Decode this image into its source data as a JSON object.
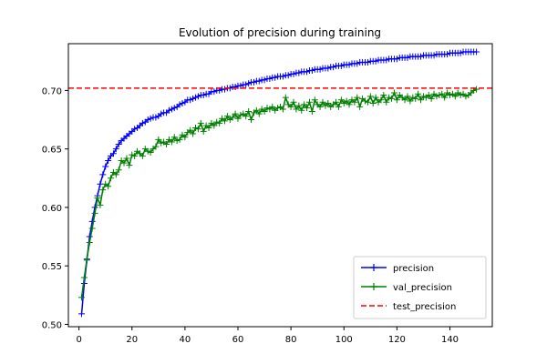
{
  "chart_data": {
    "type": "line",
    "title": "Evolution of precision during training",
    "xlabel": "",
    "ylabel": "",
    "xlim": [
      -4,
      156
    ],
    "ylim": [
      0.498,
      0.74
    ],
    "xticks": [
      0,
      20,
      40,
      60,
      80,
      100,
      120,
      140
    ],
    "yticks": [
      0.5,
      0.55,
      0.6,
      0.65,
      0.7
    ],
    "ytick_labels": [
      "0.50",
      "0.55",
      "0.60",
      "0.65",
      "0.70"
    ],
    "grid": false,
    "legend": "bottom-right",
    "x": [
      1,
      2,
      3,
      4,
      5,
      6,
      7,
      8,
      9,
      10,
      11,
      12,
      13,
      14,
      15,
      16,
      17,
      18,
      19,
      20,
      21,
      22,
      23,
      24,
      25,
      26,
      27,
      28,
      29,
      30,
      31,
      32,
      33,
      34,
      35,
      36,
      37,
      38,
      39,
      40,
      41,
      42,
      43,
      44,
      45,
      46,
      47,
      48,
      49,
      50,
      51,
      52,
      53,
      54,
      55,
      56,
      57,
      58,
      59,
      60,
      61,
      62,
      63,
      64,
      65,
      66,
      67,
      68,
      69,
      70,
      71,
      72,
      73,
      74,
      75,
      76,
      77,
      78,
      79,
      80,
      81,
      82,
      83,
      84,
      85,
      86,
      87,
      88,
      89,
      90,
      91,
      92,
      93,
      94,
      95,
      96,
      97,
      98,
      99,
      100,
      101,
      102,
      103,
      104,
      105,
      106,
      107,
      108,
      109,
      110,
      111,
      112,
      113,
      114,
      115,
      116,
      117,
      118,
      119,
      120,
      121,
      122,
      123,
      124,
      125,
      126,
      127,
      128,
      129,
      130,
      131,
      132,
      133,
      134,
      135,
      136,
      137,
      138,
      139,
      140,
      141,
      142,
      143,
      144,
      145,
      146,
      147,
      148,
      149,
      150
    ],
    "series": [
      {
        "name": "precision",
        "color": "#0000ff",
        "style": "solid",
        "marker": "plus",
        "values": [
          0.509,
          0.535,
          0.555,
          0.575,
          0.588,
          0.6,
          0.61,
          0.62,
          0.628,
          0.635,
          0.64,
          0.644,
          0.646,
          0.65,
          0.654,
          0.657,
          0.659,
          0.661,
          0.663,
          0.665,
          0.667,
          0.668,
          0.67,
          0.672,
          0.673,
          0.675,
          0.676,
          0.677,
          0.677,
          0.678,
          0.68,
          0.681,
          0.681,
          0.683,
          0.684,
          0.685,
          0.686,
          0.688,
          0.689,
          0.69,
          0.692,
          0.692,
          0.693,
          0.694,
          0.695,
          0.696,
          0.696,
          0.697,
          0.697,
          0.699,
          0.699,
          0.7,
          0.7,
          0.701,
          0.701,
          0.702,
          0.702,
          0.703,
          0.703,
          0.704,
          0.704,
          0.705,
          0.705,
          0.706,
          0.707,
          0.707,
          0.708,
          0.708,
          0.709,
          0.709,
          0.71,
          0.71,
          0.711,
          0.711,
          0.712,
          0.712,
          0.712,
          0.713,
          0.713,
          0.714,
          0.714,
          0.715,
          0.715,
          0.716,
          0.716,
          0.716,
          0.717,
          0.717,
          0.718,
          0.718,
          0.718,
          0.719,
          0.719,
          0.719,
          0.72,
          0.72,
          0.721,
          0.721,
          0.721,
          0.722,
          0.722,
          0.722,
          0.723,
          0.723,
          0.723,
          0.724,
          0.724,
          0.724,
          0.724,
          0.725,
          0.725,
          0.725,
          0.726,
          0.726,
          0.726,
          0.726,
          0.727,
          0.727,
          0.727,
          0.727,
          0.728,
          0.728,
          0.728,
          0.728,
          0.729,
          0.729,
          0.729,
          0.729,
          0.729,
          0.73,
          0.73,
          0.73,
          0.73,
          0.73,
          0.731,
          0.731,
          0.731,
          0.731,
          0.731,
          0.732,
          0.732,
          0.732,
          0.732,
          0.732,
          0.733,
          0.733,
          0.733,
          0.733,
          0.733,
          0.733
        ]
      },
      {
        "name": "val_precision",
        "color": "#008000",
        "style": "solid",
        "marker": "plus",
        "values": [
          0.523,
          0.54,
          0.556,
          0.57,
          0.582,
          0.595,
          0.608,
          0.602,
          0.615,
          0.62,
          0.618,
          0.625,
          0.63,
          0.628,
          0.632,
          0.64,
          0.638,
          0.642,
          0.636,
          0.645,
          0.644,
          0.648,
          0.646,
          0.644,
          0.65,
          0.648,
          0.647,
          0.65,
          0.652,
          0.658,
          0.655,
          0.656,
          0.654,
          0.658,
          0.656,
          0.66,
          0.657,
          0.658,
          0.662,
          0.66,
          0.664,
          0.666,
          0.663,
          0.668,
          0.667,
          0.672,
          0.665,
          0.67,
          0.668,
          0.672,
          0.67,
          0.673,
          0.672,
          0.676,
          0.674,
          0.678,
          0.675,
          0.677,
          0.68,
          0.676,
          0.679,
          0.68,
          0.678,
          0.682,
          0.675,
          0.681,
          0.683,
          0.68,
          0.684,
          0.682,
          0.685,
          0.684,
          0.686,
          0.683,
          0.685,
          0.686,
          0.684,
          0.694,
          0.688,
          0.686,
          0.69,
          0.684,
          0.687,
          0.683,
          0.688,
          0.685,
          0.69,
          0.682,
          0.692,
          0.688,
          0.686,
          0.69,
          0.687,
          0.689,
          0.686,
          0.688,
          0.69,
          0.686,
          0.692,
          0.689,
          0.691,
          0.688,
          0.692,
          0.69,
          0.694,
          0.686,
          0.693,
          0.691,
          0.69,
          0.695,
          0.689,
          0.694,
          0.69,
          0.692,
          0.696,
          0.69,
          0.694,
          0.693,
          0.698,
          0.692,
          0.696,
          0.694,
          0.692,
          0.695,
          0.691,
          0.694,
          0.693,
          0.697,
          0.692,
          0.695,
          0.694,
          0.696,
          0.693,
          0.697,
          0.695,
          0.696,
          0.697,
          0.694,
          0.698,
          0.696,
          0.697,
          0.695,
          0.698,
          0.696,
          0.697,
          0.695,
          0.696,
          0.698,
          0.7,
          0.701
        ]
      },
      {
        "name": "test_precision",
        "color": "#ff0000",
        "style": "dashed",
        "marker": "none",
        "constant": 0.702
      }
    ]
  }
}
